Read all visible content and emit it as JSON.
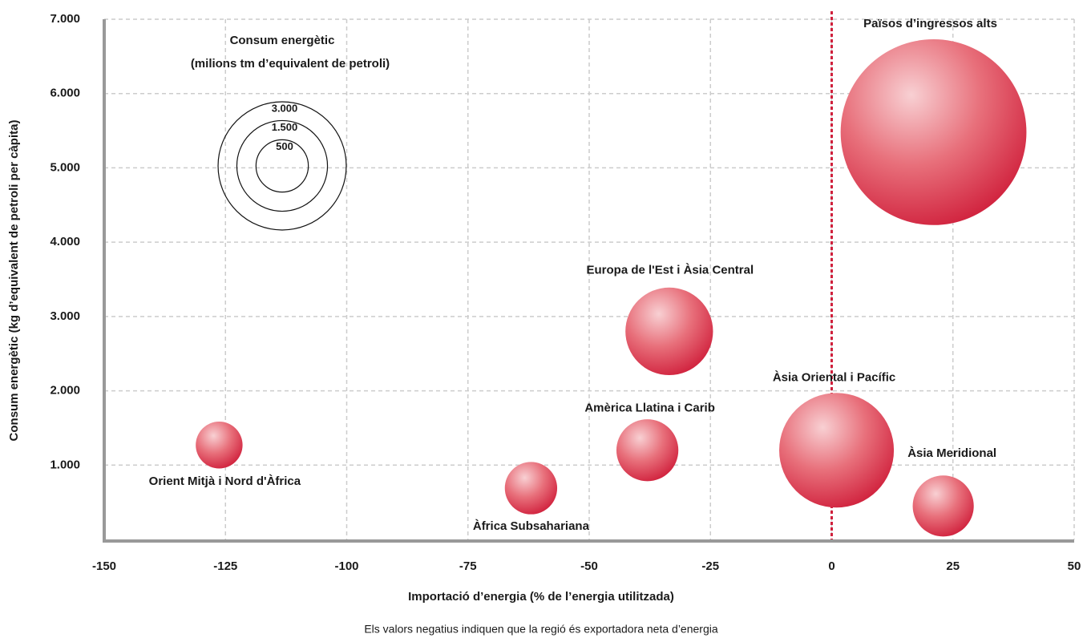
{
  "chart_data": {
    "type": "bubble",
    "legend_title": [
      "Consum energètic",
      "(milions tm d’equivalent de petroli)"
    ],
    "xlabel": "Importació d’energia (% de l’energia utilitzada)",
    "ylabel": "Consum energètic (kg d’equivalent de petroli per càpita)",
    "note": "Els valors negatius indiquen que la regió és exportadora neta d’energia",
    "xlim": [
      -150,
      50
    ],
    "ylim": [
      0,
      7000
    ],
    "xticks": [
      -150,
      -125,
      -100,
      -75,
      -50,
      -25,
      0,
      25,
      50
    ],
    "yticks": [
      {
        "value": 1000,
        "label": "1.000"
      },
      {
        "value": 2000,
        "label": "2.000"
      },
      {
        "value": 3000,
        "label": "3.000"
      },
      {
        "value": 4000,
        "label": "4.000"
      },
      {
        "value": 5000,
        "label": "5.000"
      },
      {
        "value": 6000,
        "label": "6.000"
      },
      {
        "value": 7000,
        "label": "7.000"
      }
    ],
    "grid": true,
    "vline": 0,
    "color": "#d0203c",
    "legend_sizes": [
      {
        "value": 3000,
        "label": "3.000"
      },
      {
        "value": 1500,
        "label": "1.500"
      },
      {
        "value": 500,
        "label": "500"
      }
    ],
    "points": [
      {
        "name": "Països d’ingressos alts",
        "x": 21,
        "y": 5480,
        "size": 6300
      },
      {
        "name": "Europa de l'Est i Àsia Central",
        "x": -33.5,
        "y": 2800,
        "size": 1400
      },
      {
        "name": "Àsia Oriental i Pacífic",
        "x": 1,
        "y": 1200,
        "size": 2400
      },
      {
        "name": "Àsia Meridional",
        "x": 23,
        "y": 450,
        "size": 680
      },
      {
        "name": "Amèrica Llatina i Carib",
        "x": -38,
        "y": 1200,
        "size": 700
      },
      {
        "name": "Àfrica Subsahariana",
        "x": -62,
        "y": 690,
        "size": 500
      },
      {
        "name": "Orient Mitjà i Nord d'Àfrica",
        "x": -126.3,
        "y": 1270,
        "size": 400
      }
    ]
  }
}
